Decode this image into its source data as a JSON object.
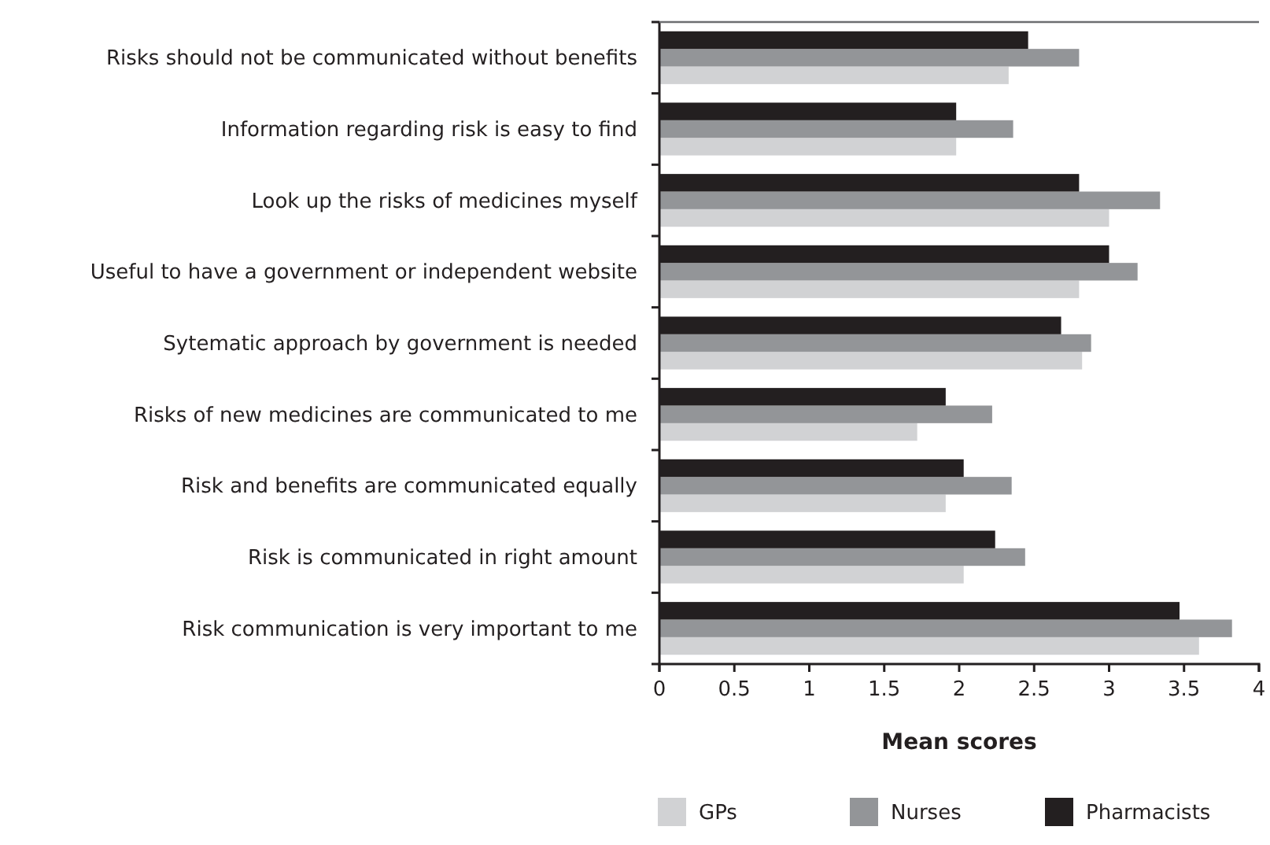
{
  "chart_data": {
    "type": "bar",
    "orientation": "horizontal",
    "xlabel": "Mean scores",
    "categories": [
      "Risks should not be communicated without benefits",
      "Information regarding risk is easy to find",
      "Look up the risks of medicines myself",
      "Useful to have a government or independent website",
      "Sytematic approach by government is needed",
      "Risks of new medicines are communicated to me",
      "Risk and benefits are communicated equally",
      "Risk is communicated in right amount",
      "Risk communication is very important to me"
    ],
    "series": [
      {
        "name": "GPs",
        "color": "#d1d2d4",
        "values": [
          2.33,
          1.98,
          3.0,
          2.8,
          2.82,
          1.72,
          1.91,
          2.03,
          3.6
        ]
      },
      {
        "name": "Nurses",
        "color": "#939598",
        "values": [
          2.8,
          2.36,
          3.34,
          3.19,
          2.88,
          2.22,
          2.35,
          2.44,
          3.82
        ]
      },
      {
        "name": "Pharmacists",
        "color": "#231f20",
        "values": [
          2.46,
          1.98,
          2.8,
          3.0,
          2.68,
          1.91,
          2.03,
          2.24,
          3.47
        ]
      }
    ],
    "xlim": [
      0,
      4
    ],
    "xticks": [
      0,
      0.5,
      1,
      1.5,
      2,
      2.5,
      3,
      3.5,
      4
    ],
    "grid": false,
    "legend": "bottom"
  }
}
